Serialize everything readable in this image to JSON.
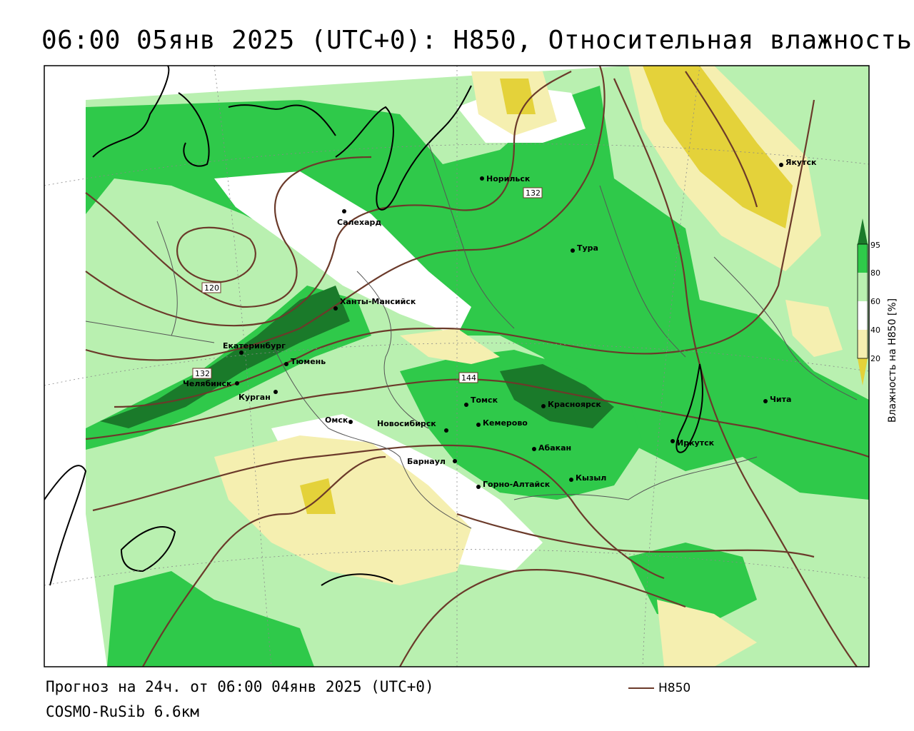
{
  "header": {
    "title": "06:00 05янв 2025 (UTC+0): H850, Относительная влажность"
  },
  "footer": {
    "forecast": "Прогноз на 24ч. от 06:00 04янв 2025 (UTC+0)",
    "model": "COSMO-RuSib 6.6км",
    "legend_label": "H850"
  },
  "colorbar": {
    "title": "Влажность на H850 [%]",
    "ticks": [
      "95",
      "80",
      "60",
      "40",
      "20"
    ],
    "colors": {
      "c95": "#1a7a2a",
      "c80": "#2fc94a",
      "c60": "#b9f0b0",
      "c40": "#ffffff",
      "c20": "#f5efb0",
      "c0": "#e4d23a"
    }
  },
  "contour_labels": [
    "132",
    "120",
    "132",
    "144"
  ],
  "cities": [
    {
      "name": "Норильск"
    },
    {
      "name": "Салехард"
    },
    {
      "name": "Якутск"
    },
    {
      "name": "Тура"
    },
    {
      "name": "Ханты-Мансийск"
    },
    {
      "name": "Екатеринбург"
    },
    {
      "name": "Тюмень"
    },
    {
      "name": "Челябинск"
    },
    {
      "name": "Курган"
    },
    {
      "name": "Омск"
    },
    {
      "name": "Новосибирск"
    },
    {
      "name": "Томск"
    },
    {
      "name": "Кемерово"
    },
    {
      "name": "Красноярск"
    },
    {
      "name": "Барнаул"
    },
    {
      "name": "Абакан"
    },
    {
      "name": "Горно-Алтайск"
    },
    {
      "name": "Кызыл"
    },
    {
      "name": "Иркутск"
    },
    {
      "name": "Чита"
    }
  ],
  "colors": {
    "contour": "#6b3a2a",
    "coast": "#000000",
    "border": "#555555"
  }
}
